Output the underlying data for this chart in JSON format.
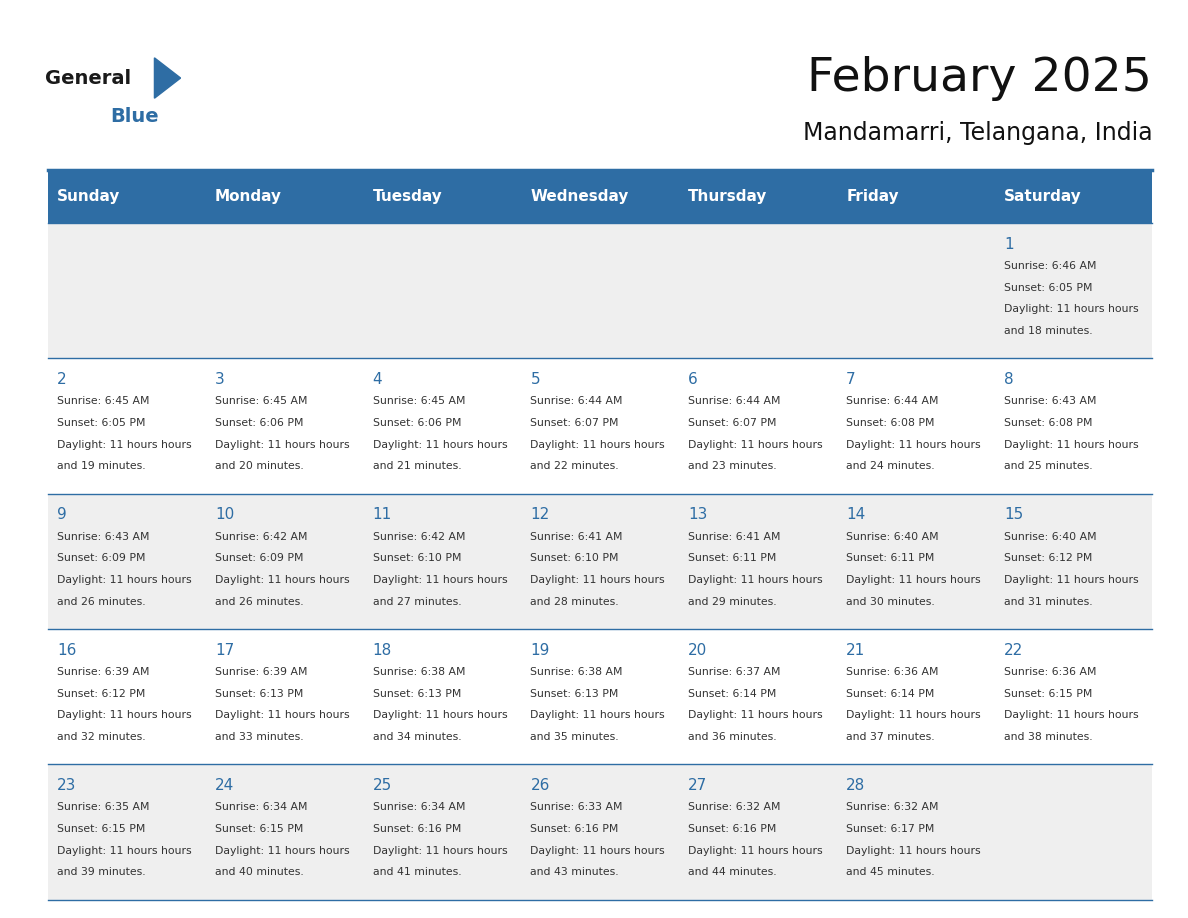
{
  "title": "February 2025",
  "subtitle": "Mandamarri, Telangana, India",
  "days_of_week": [
    "Sunday",
    "Monday",
    "Tuesday",
    "Wednesday",
    "Thursday",
    "Friday",
    "Saturday"
  ],
  "header_bg": "#2E6DA4",
  "header_text": "#FFFFFF",
  "cell_bg_light": "#EFEFEF",
  "cell_bg_white": "#FFFFFF",
  "day_num_color": "#2E6DA4",
  "info_text_color": "#333333",
  "line_color": "#2E6DA4",
  "calendar": [
    [
      null,
      null,
      null,
      null,
      null,
      null,
      {
        "day": 1,
        "sunrise": "6:46 AM",
        "sunset": "6:05 PM",
        "daylight": "11 hours and 18 minutes."
      }
    ],
    [
      {
        "day": 2,
        "sunrise": "6:45 AM",
        "sunset": "6:05 PM",
        "daylight": "11 hours and 19 minutes."
      },
      {
        "day": 3,
        "sunrise": "6:45 AM",
        "sunset": "6:06 PM",
        "daylight": "11 hours and 20 minutes."
      },
      {
        "day": 4,
        "sunrise": "6:45 AM",
        "sunset": "6:06 PM",
        "daylight": "11 hours and 21 minutes."
      },
      {
        "day": 5,
        "sunrise": "6:44 AM",
        "sunset": "6:07 PM",
        "daylight": "11 hours and 22 minutes."
      },
      {
        "day": 6,
        "sunrise": "6:44 AM",
        "sunset": "6:07 PM",
        "daylight": "11 hours and 23 minutes."
      },
      {
        "day": 7,
        "sunrise": "6:44 AM",
        "sunset": "6:08 PM",
        "daylight": "11 hours and 24 minutes."
      },
      {
        "day": 8,
        "sunrise": "6:43 AM",
        "sunset": "6:08 PM",
        "daylight": "11 hours and 25 minutes."
      }
    ],
    [
      {
        "day": 9,
        "sunrise": "6:43 AM",
        "sunset": "6:09 PM",
        "daylight": "11 hours and 26 minutes."
      },
      {
        "day": 10,
        "sunrise": "6:42 AM",
        "sunset": "6:09 PM",
        "daylight": "11 hours and 26 minutes."
      },
      {
        "day": 11,
        "sunrise": "6:42 AM",
        "sunset": "6:10 PM",
        "daylight": "11 hours and 27 minutes."
      },
      {
        "day": 12,
        "sunrise": "6:41 AM",
        "sunset": "6:10 PM",
        "daylight": "11 hours and 28 minutes."
      },
      {
        "day": 13,
        "sunrise": "6:41 AM",
        "sunset": "6:11 PM",
        "daylight": "11 hours and 29 minutes."
      },
      {
        "day": 14,
        "sunrise": "6:40 AM",
        "sunset": "6:11 PM",
        "daylight": "11 hours and 30 minutes."
      },
      {
        "day": 15,
        "sunrise": "6:40 AM",
        "sunset": "6:12 PM",
        "daylight": "11 hours and 31 minutes."
      }
    ],
    [
      {
        "day": 16,
        "sunrise": "6:39 AM",
        "sunset": "6:12 PM",
        "daylight": "11 hours and 32 minutes."
      },
      {
        "day": 17,
        "sunrise": "6:39 AM",
        "sunset": "6:13 PM",
        "daylight": "11 hours and 33 minutes."
      },
      {
        "day": 18,
        "sunrise": "6:38 AM",
        "sunset": "6:13 PM",
        "daylight": "11 hours and 34 minutes."
      },
      {
        "day": 19,
        "sunrise": "6:38 AM",
        "sunset": "6:13 PM",
        "daylight": "11 hours and 35 minutes."
      },
      {
        "day": 20,
        "sunrise": "6:37 AM",
        "sunset": "6:14 PM",
        "daylight": "11 hours and 36 minutes."
      },
      {
        "day": 21,
        "sunrise": "6:36 AM",
        "sunset": "6:14 PM",
        "daylight": "11 hours and 37 minutes."
      },
      {
        "day": 22,
        "sunrise": "6:36 AM",
        "sunset": "6:15 PM",
        "daylight": "11 hours and 38 minutes."
      }
    ],
    [
      {
        "day": 23,
        "sunrise": "6:35 AM",
        "sunset": "6:15 PM",
        "daylight": "11 hours and 39 minutes."
      },
      {
        "day": 24,
        "sunrise": "6:34 AM",
        "sunset": "6:15 PM",
        "daylight": "11 hours and 40 minutes."
      },
      {
        "day": 25,
        "sunrise": "6:34 AM",
        "sunset": "6:16 PM",
        "daylight": "11 hours and 41 minutes."
      },
      {
        "day": 26,
        "sunrise": "6:33 AM",
        "sunset": "6:16 PM",
        "daylight": "11 hours and 43 minutes."
      },
      {
        "day": 27,
        "sunrise": "6:32 AM",
        "sunset": "6:16 PM",
        "daylight": "11 hours and 44 minutes."
      },
      {
        "day": 28,
        "sunrise": "6:32 AM",
        "sunset": "6:17 PM",
        "daylight": "11 hours and 45 minutes."
      },
      null
    ]
  ],
  "logo_text_general": "General",
  "logo_text_blue": "Blue",
  "logo_color_general": "#1a1a1a",
  "logo_color_blue": "#2E6DA4",
  "logo_triangle_color": "#2E6DA4"
}
